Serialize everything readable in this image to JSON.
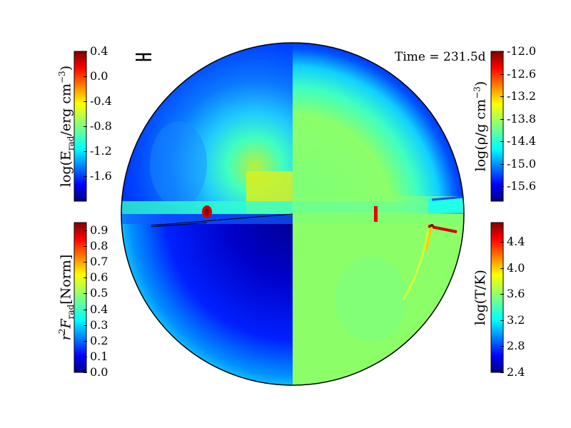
{
  "time_label": "Time = 231.5d",
  "colormap": [
    "#00007f",
    "#0000ff",
    "#007fff",
    "#00ffff",
    "#7fff7f",
    "#ffff00",
    "#ff7f00",
    "#ff0000",
    "#7f0000"
  ],
  "panels": {
    "top_left": {
      "label_main": "log(E",
      "label_sub": "rad",
      "label_tail": "/erg cm",
      "label_sup": "−3",
      "label_close": ")",
      "range": [
        -2.0,
        0.4
      ],
      "ticks": [
        "0.4",
        "0.0",
        "-0.4",
        "-0.8",
        "-1.2",
        "-1.6"
      ]
    },
    "bottom_left": {
      "label_main": "r",
      "label_sup": "2",
      "label_F": "F",
      "label_sub": "rad",
      "label_tail": "[Norm]",
      "range": [
        0.0,
        0.95
      ],
      "ticks": [
        "0.9",
        "0.8",
        "0.7",
        "0.6",
        "0.5",
        "0.4",
        "0.3",
        "0.2",
        "0.1",
        "0.0"
      ]
    },
    "top_right": {
      "label_main": "log(ρ/g cm",
      "label_sup": "−3",
      "label_close": ")",
      "range": [
        -16.0,
        -12.0
      ],
      "ticks": [
        "-12.0",
        "-12.6",
        "-13.2",
        "-13.8",
        "-14.4",
        "-15.0",
        "-15.6"
      ]
    },
    "bottom_right": {
      "label_main": "log(T/K)",
      "range": [
        2.4,
        4.7
      ],
      "ticks": [
        "4.4",
        "4.0",
        "3.6",
        "3.2",
        "2.8",
        "2.4"
      ]
    }
  }
}
